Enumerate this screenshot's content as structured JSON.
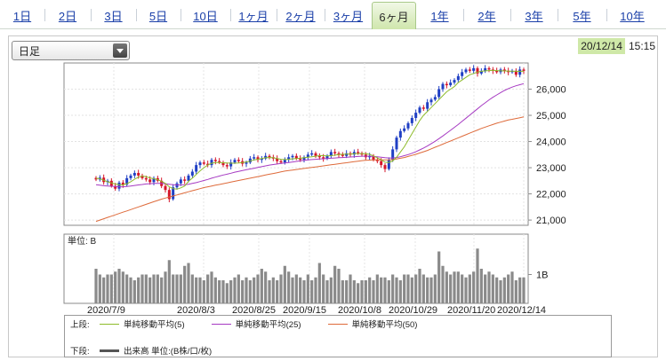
{
  "tabs": [
    {
      "label": "1日",
      "w": 50
    },
    {
      "label": "2日",
      "w": 52
    },
    {
      "label": "3日",
      "w": 51
    },
    {
      "label": "5日",
      "w": 50
    },
    {
      "label": "10日",
      "w": 56
    },
    {
      "label": "1ヶ月",
      "w": 52
    },
    {
      "label": "2ヶ月",
      "w": 54
    },
    {
      "label": "3ヶ月",
      "w": 53
    },
    {
      "label": "6ヶ月",
      "w": 50,
      "active": true
    },
    {
      "label": "1年",
      "w": 53
    },
    {
      "label": "2年",
      "w": 53
    },
    {
      "label": "3年",
      "w": 53
    },
    {
      "label": "5年",
      "w": 55
    },
    {
      "label": "10年",
      "w": 58
    }
  ],
  "selector": {
    "value": "日足"
  },
  "timestamp": {
    "date": "20/12/14",
    "time": "15:15"
  },
  "volume_panel": {
    "unit_label": "単位: B",
    "tick_label": "1B"
  },
  "legend": {
    "upper_label": "上段:",
    "lower_label": "下段:",
    "ma5": "単純移動平均(5)",
    "ma25": "単純移動平均(25)",
    "ma50": "単純移動平均(50)",
    "volume": "出来高 単位:(B株/口/枚)"
  },
  "colors": {
    "up_candle": "#1f3fc4",
    "down_candle": "#d6162a",
    "ma5": "#8dbb2a",
    "ma25": "#a63ac2",
    "ma50": "#de6a3a",
    "volume_bar": "#8a8a8a"
  },
  "chart_data": {
    "type": "candlestick",
    "y_ticks": [
      "26,000",
      "25,000",
      "24,000",
      "23,000",
      "22,000",
      "21,000"
    ],
    "y_tick_values": [
      26000,
      25000,
      24000,
      23000,
      22000,
      21000
    ],
    "ylim": [
      20800,
      27000
    ],
    "x_tick_labels": [
      "2020/7/9",
      "2020/8/3",
      "2020/8/25",
      "2020/9/15",
      "2020/10/8",
      "2020/10/29",
      "2020/11/20",
      "2020/12/14"
    ],
    "closes": [
      22550,
      22620,
      22450,
      22500,
      22300,
      22200,
      22430,
      22350,
      22600,
      22700,
      22800,
      22700,
      22600,
      22550,
      22450,
      22600,
      22500,
      22300,
      22150,
      21800,
      22250,
      22400,
      22550,
      22500,
      22700,
      22850,
      23100,
      23200,
      23150,
      23100,
      23300,
      23250,
      23200,
      23100,
      23050,
      23200,
      23300,
      23250,
      23150,
      23200,
      23350,
      23400,
      23300,
      23350,
      23450,
      23400,
      23350,
      23250,
      23200,
      23300,
      23400,
      23450,
      23350,
      23300,
      23400,
      23500,
      23550,
      23450,
      23400,
      23350,
      23450,
      23600,
      23550,
      23500,
      23450,
      23550,
      23500,
      23600,
      23550,
      23500,
      23400,
      23450,
      23300,
      23250,
      23100,
      22950,
      23300,
      23700,
      24150,
      24400,
      24500,
      24700,
      24900,
      25100,
      25300,
      25250,
      25500,
      25600,
      25700,
      26000,
      26200,
      26150,
      26250,
      26350,
      26500,
      26650,
      26750,
      26700,
      26800,
      26600,
      26700,
      26800,
      26750,
      26700,
      26650,
      26750,
      26700,
      26650,
      26700,
      26550,
      26750,
      26700
    ],
    "ma5": [
      22600,
      22580,
      22520,
      22460,
      22420,
      22380,
      22350,
      22340,
      22390,
      22460,
      22560,
      22640,
      22680,
      22660,
      22610,
      22580,
      22540,
      22480,
      22400,
      22270,
      22200,
      22180,
      22230,
      22300,
      22480,
      22600,
      22740,
      22880,
      23000,
      23100,
      23170,
      23200,
      23200,
      23190,
      23180,
      23170,
      23170,
      23180,
      23200,
      23220,
      23250,
      23300,
      23320,
      23350,
      23380,
      23390,
      23380,
      23350,
      23320,
      23310,
      23320,
      23340,
      23350,
      23360,
      23380,
      23400,
      23420,
      23440,
      23460,
      23460,
      23450,
      23460,
      23480,
      23500,
      23510,
      23520,
      23520,
      23530,
      23540,
      23540,
      23530,
      23510,
      23450,
      23380,
      23300,
      23210,
      23200,
      23260,
      23400,
      23600,
      23800,
      24050,
      24300,
      24550,
      24800,
      25000,
      25150,
      25300,
      25450,
      25600,
      25750,
      25900,
      26000,
      26100,
      26250,
      26350,
      26450,
      26550,
      26600,
      26650,
      26680,
      26700,
      26710,
      26720,
      26710,
      26700,
      26700,
      26690,
      26690,
      26680,
      26680,
      26680
    ],
    "ma25": [
      22350,
      22330,
      22310,
      22300,
      22290,
      22280,
      22270,
      22270,
      22280,
      22300,
      22320,
      22340,
      22360,
      22380,
      22390,
      22400,
      22400,
      22400,
      22390,
      22370,
      22350,
      22340,
      22340,
      22350,
      22370,
      22400,
      22430,
      22470,
      22510,
      22550,
      22600,
      22640,
      22680,
      22720,
      22750,
      22790,
      22830,
      22860,
      22890,
      22920,
      22950,
      22980,
      23010,
      23040,
      23070,
      23100,
      23120,
      23140,
      23160,
      23180,
      23200,
      23220,
      23240,
      23260,
      23280,
      23300,
      23310,
      23320,
      23330,
      23340,
      23350,
      23360,
      23370,
      23380,
      23390,
      23400,
      23410,
      23420,
      23430,
      23440,
      23440,
      23440,
      23430,
      23420,
      23400,
      23380,
      23370,
      23370,
      23390,
      23420,
      23460,
      23500,
      23550,
      23610,
      23680,
      23750,
      23830,
      23920,
      24010,
      24110,
      24210,
      24320,
      24430,
      24540,
      24650,
      24770,
      24890,
      25010,
      25130,
      25250,
      25370,
      25480,
      25590,
      25690,
      25780,
      25870,
      25950,
      26020,
      26080,
      26130,
      26170,
      26210
    ],
    "ma50": [
      20950,
      21000,
      21050,
      21100,
      21150,
      21200,
      21250,
      21300,
      21350,
      21400,
      21450,
      21500,
      21550,
      21600,
      21650,
      21700,
      21750,
      21800,
      21840,
      21880,
      21920,
      21960,
      22000,
      22040,
      22080,
      22120,
      22160,
      22200,
      22240,
      22270,
      22300,
      22330,
      22360,
      22390,
      22420,
      22450,
      22480,
      22510,
      22540,
      22570,
      22600,
      22630,
      22660,
      22690,
      22720,
      22750,
      22780,
      22810,
      22840,
      22870,
      22890,
      22910,
      22930,
      22950,
      22970,
      22990,
      23010,
      23030,
      23050,
      23070,
      23090,
      23110,
      23130,
      23150,
      23170,
      23190,
      23210,
      23230,
      23250,
      23270,
      23280,
      23290,
      23300,
      23300,
      23300,
      23300,
      23300,
      23310,
      23330,
      23360,
      23390,
      23430,
      23470,
      23510,
      23560,
      23610,
      23660,
      23720,
      23780,
      23840,
      23900,
      23960,
      24020,
      24080,
      24140,
      24200,
      24260,
      24320,
      24380,
      24440,
      24500,
      24550,
      24600,
      24650,
      24700,
      24740,
      24780,
      24820,
      24850,
      24880,
      24910,
      24940
    ],
    "volume": [
      1.2,
      1.0,
      0.9,
      1.0,
      1.0,
      1.1,
      1.2,
      1.1,
      1.0,
      0.9,
      0.8,
      0.9,
      1.0,
      1.0,
      0.9,
      1.0,
      1.0,
      0.9,
      1.1,
      1.5,
      1.0,
      1.0,
      1.0,
      1.3,
      1.4,
      1.0,
      0.9,
      0.9,
      0.8,
      1.0,
      1.1,
      0.9,
      0.8,
      0.8,
      0.7,
      0.8,
      0.9,
      1.0,
      0.8,
      0.9,
      0.8,
      0.9,
      1.0,
      1.2,
      1.1,
      0.8,
      0.9,
      0.8,
      1.0,
      1.3,
      1.1,
      0.9,
      1.0,
      0.9,
      0.8,
      1.0,
      0.8,
      0.9,
      1.4,
      1.0,
      0.8,
      0.9,
      1.3,
      1.2,
      0.8,
      0.8,
      1.0,
      0.8,
      0.7,
      0.8,
      0.8,
      0.9,
      0.8,
      1.0,
      0.9,
      0.9,
      0.8,
      1.0,
      0.9,
      0.8,
      1.0,
      1.0,
      0.9,
      1.0,
      1.2,
      1.0,
      0.9,
      0.9,
      1.0,
      1.8,
      1.3,
      1.1,
      1.0,
      1.1,
      1.1,
      1.0,
      0.9,
      1.0,
      1.1,
      1.9,
      1.2,
      1.0,
      1.1,
      1.0,
      0.9,
      0.8,
      0.9,
      1.0,
      1.1,
      0.8,
      0.9,
      0.9
    ]
  }
}
